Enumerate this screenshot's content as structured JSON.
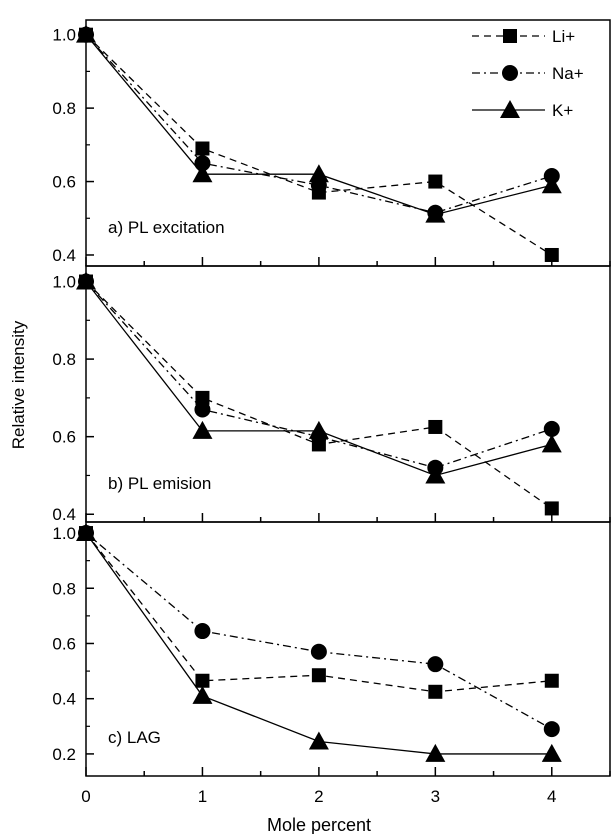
{
  "figure": {
    "xlabel": "Mole percent",
    "ylabel": "Relative intensity"
  },
  "legend": [
    {
      "label": "Li+",
      "marker": "square",
      "dash": "dashed"
    },
    {
      "label": "Na+",
      "marker": "circle",
      "dash": "dashdot"
    },
    {
      "label": "K+",
      "marker": "triangle",
      "dash": "solid"
    }
  ],
  "colors": {
    "ink": "#000000",
    "background": "#ffffff"
  },
  "chart_data": [
    {
      "type": "line",
      "annotation": "a) PL excitation",
      "x": [
        0,
        1,
        2,
        3,
        4
      ],
      "xlim": [
        0,
        4.5
      ],
      "ylim": [
        0.37,
        1.04
      ],
      "yticks": [
        0.4,
        0.6,
        0.8,
        1.0
      ],
      "series": [
        {
          "name": "Li+",
          "values": [
            1.0,
            0.69,
            0.57,
            0.6,
            0.4
          ]
        },
        {
          "name": "Na+",
          "values": [
            1.0,
            0.65,
            0.59,
            0.515,
            0.615
          ]
        },
        {
          "name": "K+",
          "values": [
            1.0,
            0.62,
            0.62,
            0.51,
            0.59
          ]
        }
      ]
    },
    {
      "type": "line",
      "annotation": "b) PL emision",
      "x": [
        0,
        1,
        2,
        3,
        4
      ],
      "xlim": [
        0,
        4.5
      ],
      "ylim": [
        0.38,
        1.04
      ],
      "yticks": [
        0.4,
        0.6,
        0.8,
        1.0
      ],
      "series": [
        {
          "name": "Li+",
          "values": [
            1.0,
            0.7,
            0.58,
            0.625,
            0.415
          ]
        },
        {
          "name": "Na+",
          "values": [
            1.0,
            0.67,
            0.6,
            0.52,
            0.62
          ]
        },
        {
          "name": "K+",
          "values": [
            1.0,
            0.615,
            0.615,
            0.5,
            0.58
          ]
        }
      ]
    },
    {
      "type": "line",
      "annotation": "c) LAG",
      "x": [
        0,
        1,
        2,
        3,
        4
      ],
      "xlim": [
        0,
        4.5
      ],
      "ylim": [
        0.12,
        1.04
      ],
      "yticks": [
        0.2,
        0.4,
        0.6,
        0.8,
        1.0
      ],
      "xticks": [
        0,
        1,
        2,
        3,
        4
      ],
      "series": [
        {
          "name": "Li+",
          "values": [
            1.0,
            0.465,
            0.485,
            0.425,
            0.465
          ]
        },
        {
          "name": "Na+",
          "values": [
            1.0,
            0.645,
            0.57,
            0.525,
            0.29
          ]
        },
        {
          "name": "K+",
          "values": [
            1.0,
            0.41,
            0.245,
            0.2,
            0.2
          ]
        }
      ]
    }
  ]
}
